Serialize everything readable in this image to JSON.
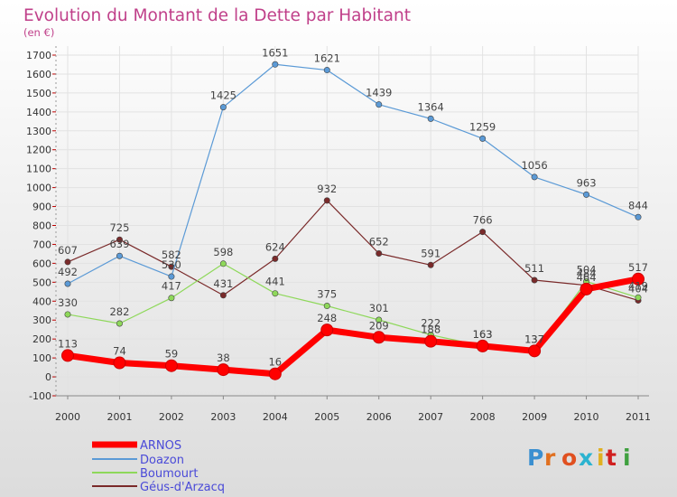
{
  "chart_data": {
    "type": "line",
    "title": "Evolution du Montant de la Dette par Habitant",
    "subtitle": "(en €)",
    "x": [
      "2000",
      "2001",
      "2002",
      "2003",
      "2004",
      "2005",
      "2006",
      "2007",
      "2008",
      "2009",
      "2010",
      "2011"
    ],
    "ylim": [
      -100,
      1700
    ],
    "yticks": [
      -100,
      0,
      100,
      200,
      300,
      400,
      500,
      600,
      700,
      800,
      900,
      1000,
      1100,
      1200,
      1300,
      1400,
      1500,
      1600,
      1700
    ],
    "grid": true,
    "legend": "bottom-left",
    "series": [
      {
        "name": "Géus-d'Arzacq",
        "color": "#7a2a2a",
        "values": [
          607,
          725,
          582,
          431,
          624,
          932,
          652,
          591,
          766,
          511,
          484,
          404
        ]
      },
      {
        "name": "Boumourt",
        "color": "#8ed85a",
        "values": [
          330,
          282,
          417,
          598,
          441,
          375,
          301,
          222,
          163,
          137,
          504,
          419
        ]
      },
      {
        "name": "Doazon",
        "color": "#5b9ad6",
        "values": [
          492,
          639,
          530,
          1425,
          1651,
          1621,
          1439,
          1364,
          1259,
          1056,
          963,
          844
        ]
      },
      {
        "name": "ARNOS",
        "color": "#ff0000",
        "values": [
          113,
          74,
          59,
          38,
          16,
          248,
          209,
          188,
          163,
          137,
          464,
          517
        ]
      }
    ]
  },
  "legend_entries": [
    "ARNOS",
    "Doazon",
    "Boumourt",
    "Géus-d'Arzacq"
  ],
  "logo": {
    "text": "Proxiti"
  }
}
